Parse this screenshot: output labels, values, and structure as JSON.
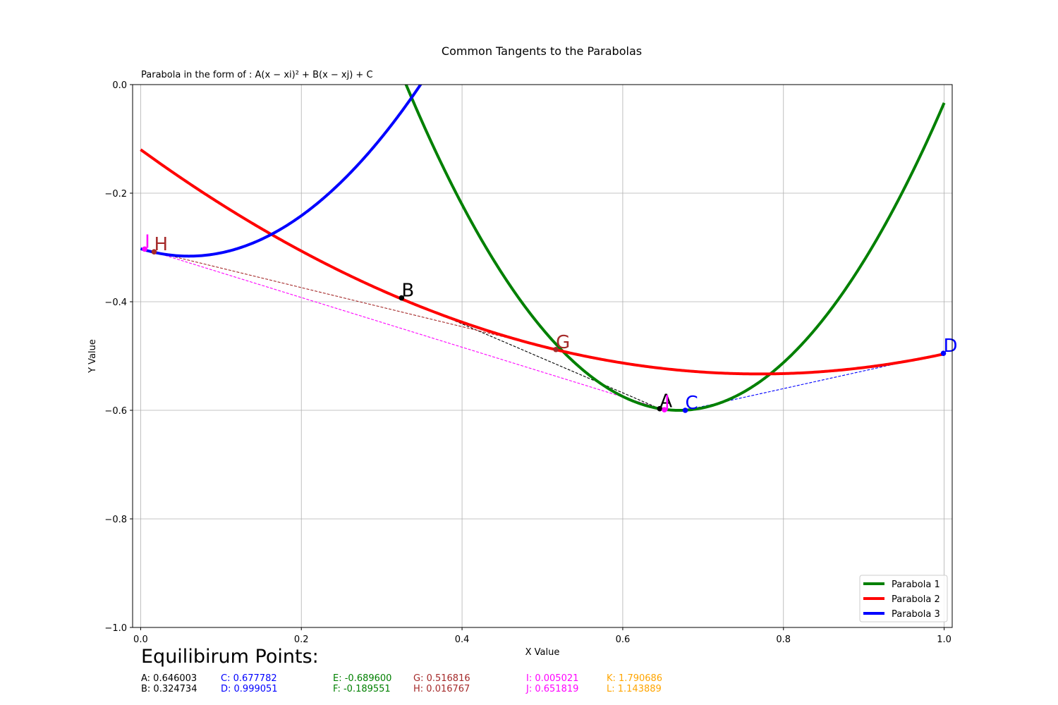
{
  "chart_data": {
    "type": "line",
    "title": "Common Tangents to the Parabolas",
    "subtitle": "Parabola in the form of : A(x − xi)² + B(x − xj) + C",
    "xlabel": "X Value",
    "ylabel": "Y Value",
    "xlim": [
      -0.01,
      1.01
    ],
    "ylim": [
      -1.0,
      0.0
    ],
    "xticks": [
      0.0,
      0.2,
      0.4,
      0.6,
      0.8,
      1.0
    ],
    "xtick_labels": [
      "0.0",
      "0.2",
      "0.4",
      "0.6",
      "0.8",
      "1.0"
    ],
    "yticks": [
      0.0,
      -0.2,
      -0.4,
      -0.6,
      -0.8,
      -1.0
    ],
    "ytick_labels": [
      "0.0",
      "−0.2",
      "−0.4",
      "−0.6",
      "−0.8",
      "−1.0"
    ],
    "grid": true,
    "legend_position": "lower-right",
    "series": [
      {
        "name": "Parabola 1",
        "color": "#008000",
        "a": 5.2,
        "h": 0.67,
        "k": -0.6
      },
      {
        "name": "Parabola 2",
        "color": "#ff0000",
        "a": 0.697,
        "h": 0.77,
        "k": -0.533
      },
      {
        "name": "Parabola 3",
        "color": "#0000ff",
        "a": 3.8,
        "h": 0.06,
        "k": -0.316
      }
    ],
    "points": [
      {
        "label": "A",
        "x": 0.646003,
        "y": -0.597,
        "color": "#000000"
      },
      {
        "label": "B",
        "x": 0.324734,
        "y": -0.393,
        "color": "#000000"
      },
      {
        "label": "C",
        "x": 0.677782,
        "y": -0.6,
        "color": "#0000ff"
      },
      {
        "label": "D",
        "x": 0.999051,
        "y": -0.495,
        "color": "#0000ff"
      },
      {
        "label": "G",
        "x": 0.516816,
        "y": -0.488,
        "color": "#a52a2a"
      },
      {
        "label": "H",
        "x": 0.016767,
        "y": -0.308,
        "color": "#a52a2a"
      },
      {
        "label": "I",
        "x": 0.005021,
        "y": -0.303,
        "color": "#ff00ff"
      },
      {
        "label": "J",
        "x": 0.651819,
        "y": -0.599,
        "color": "#ff00ff"
      }
    ],
    "tangents": [
      {
        "from": "A",
        "to": "B",
        "color": "#000000"
      },
      {
        "from": "C",
        "to": "D",
        "color": "#0000ff"
      },
      {
        "from": "G",
        "to": "H",
        "color": "#a52a2a"
      },
      {
        "from": "I",
        "to": "J",
        "color": "#ff00ff"
      }
    ]
  },
  "equilibrium": {
    "title": "Equilibirum Points:",
    "values": [
      {
        "text": "A: 0.646003",
        "color": "#000000"
      },
      {
        "text": "B: 0.324734",
        "color": "#000000"
      },
      {
        "text": "C: 0.677782",
        "color": "#0000ff"
      },
      {
        "text": "D: 0.999051",
        "color": "#0000ff"
      },
      {
        "text": "E: -0.689600",
        "color": "#008000"
      },
      {
        "text": "F: -0.189551",
        "color": "#008000"
      },
      {
        "text": "G: 0.516816",
        "color": "#a52a2a"
      },
      {
        "text": "H: 0.016767",
        "color": "#a52a2a"
      },
      {
        "text": "I: 0.005021",
        "color": "#ff00ff"
      },
      {
        "text": "J: 0.651819",
        "color": "#ff00ff"
      },
      {
        "text": "K: 1.790686",
        "color": "#ffa500"
      },
      {
        "text": "L: 1.143889",
        "color": "#ffa500"
      }
    ]
  }
}
